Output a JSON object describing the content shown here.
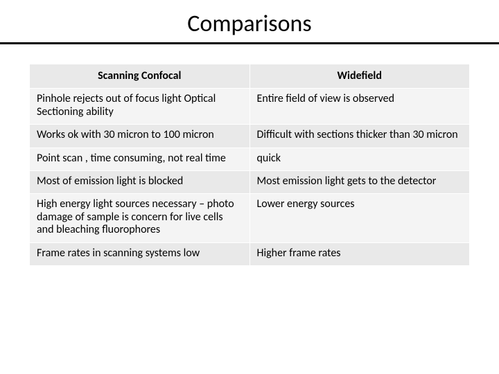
{
  "title": "Comparisons",
  "table": {
    "type": "table",
    "column_widths_pct": [
      50,
      50
    ],
    "header_bg": "#e9e9e9",
    "band_a_bg": "#f4f4f4",
    "band_b_bg": "#e9e9e9",
    "border_color": "#ffffff",
    "font_size_pt": 16,
    "header_font_weight": 700,
    "columns": [
      "Scanning Confocal",
      "Widefield"
    ],
    "rows": [
      [
        "Pinhole rejects out of focus light Optical Sectioning ability",
        "Entire field of view is observed"
      ],
      [
        "Works ok with 30 micron to 100 micron",
        "Difficult with sections thicker than 30 micron"
      ],
      [
        "Point scan , time consuming, not real time",
        "quick"
      ],
      [
        "Most of emission light is blocked",
        "Most emission light gets to the detector"
      ],
      [
        "High energy light sources necessary – photo damage of sample is concern for live cells and bleaching fluorophores",
        "Lower energy sources"
      ],
      [
        "Frame rates in scanning systems low",
        "Higher frame rates"
      ]
    ]
  },
  "colors": {
    "background": "#ffffff",
    "text": "#000000",
    "hr": "#000000"
  }
}
